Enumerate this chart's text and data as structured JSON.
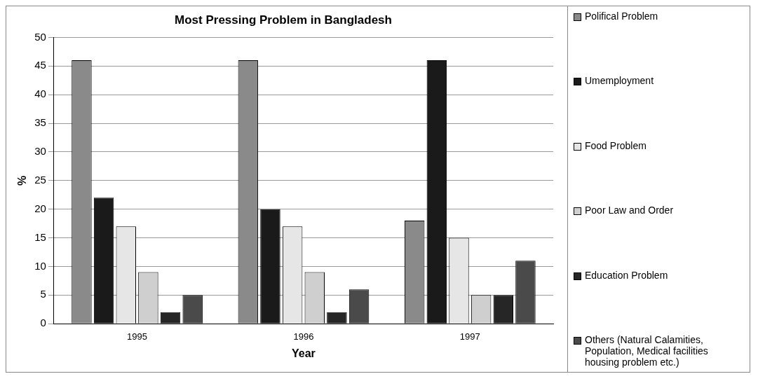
{
  "chart_data": {
    "type": "bar",
    "title": "Most Pressing Problem in Bangladesh",
    "xlabel": "Year",
    "ylabel": "%",
    "categories": [
      "1995",
      "1996",
      "1997"
    ],
    "series": [
      {
        "name": "Polifical Problem",
        "color": "#8a8a8a",
        "values": [
          46,
          46,
          18
        ]
      },
      {
        "name": "Umemployment",
        "color": "#1a1a1a",
        "values": [
          22,
          20,
          46
        ]
      },
      {
        "name": "Food Problem",
        "color": "#e6e6e6",
        "values": [
          17,
          17,
          15
        ]
      },
      {
        "name": "Poor Law and Order",
        "color": "#cfcfcf",
        "values": [
          9,
          9,
          5
        ]
      },
      {
        "name": "Education Problem",
        "color": "#262626",
        "values": [
          2,
          2,
          5
        ]
      },
      {
        "name": "Others (Natural Calamities, Population, Medical facilities housing problem etc.)",
        "color": "#4a4a4a",
        "values": [
          5,
          6,
          11
        ]
      }
    ],
    "ylim": [
      0,
      50
    ],
    "yticks": [
      0,
      5,
      10,
      15,
      20,
      25,
      30,
      35,
      40,
      45,
      50
    ],
    "grid": "y",
    "legend": "right"
  }
}
